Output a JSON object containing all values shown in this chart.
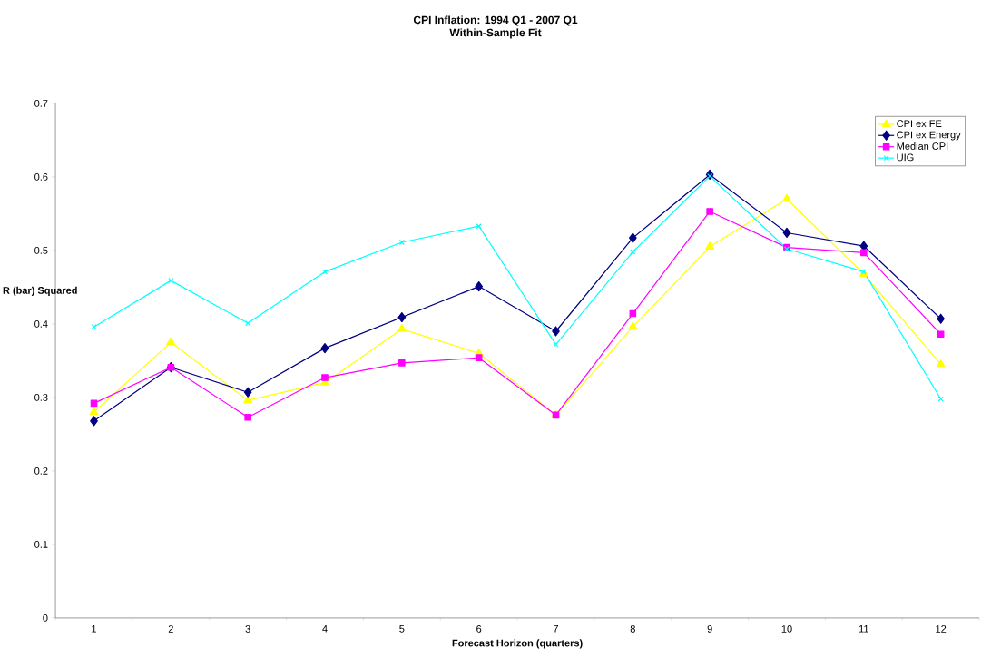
{
  "chart_data": {
    "type": "line",
    "title": "CPI Inflation: 1994 Q1 - 2007 Q1",
    "subtitle": "Within-Sample Fit",
    "xlabel": "Forecast Horizon (quarters)",
    "ylabel": "R (bar) Squared",
    "categories": [
      "1",
      "2",
      "3",
      "4",
      "5",
      "6",
      "7",
      "8",
      "9",
      "10",
      "11",
      "12"
    ],
    "ylim": [
      0,
      0.7
    ],
    "yticks": [
      0,
      0.1,
      0.2,
      0.3,
      0.4,
      0.5,
      0.6,
      0.7
    ],
    "grid": false,
    "legend": "top right",
    "line_style": "solid",
    "series": [
      {
        "name": "CPI ex FE",
        "color": "#ffff00",
        "marker": "triangle",
        "values": [
          0.28,
          0.375,
          0.296,
          0.32,
          0.393,
          0.36,
          0.276,
          0.396,
          0.505,
          0.57,
          0.468,
          0.345
        ]
      },
      {
        "name": "CPI ex Energy",
        "color": "#000080",
        "marker": "diamond",
        "values": [
          0.268,
          0.341,
          0.307,
          0.367,
          0.409,
          0.451,
          0.39,
          0.517,
          0.603,
          0.524,
          0.506,
          0.407
        ]
      },
      {
        "name": "Median CPI",
        "color": "#ff00ff",
        "marker": "square",
        "values": [
          0.292,
          0.341,
          0.273,
          0.327,
          0.347,
          0.354,
          0.276,
          0.414,
          0.553,
          0.504,
          0.497,
          0.386
        ]
      },
      {
        "name": "UIG",
        "color": "#00ffff",
        "marker": "cross",
        "values": [
          0.396,
          0.459,
          0.401,
          0.471,
          0.511,
          0.533,
          0.372,
          0.498,
          0.601,
          0.502,
          0.471,
          0.298
        ]
      }
    ]
  }
}
